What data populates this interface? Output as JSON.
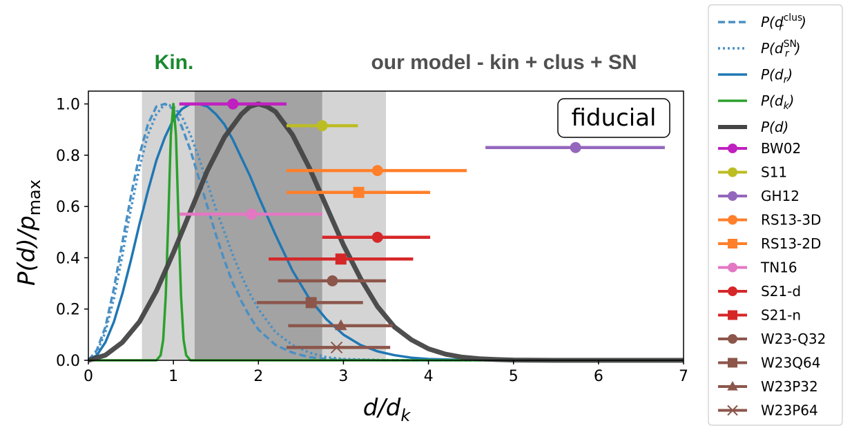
{
  "chart_data": {
    "type": "line",
    "xlabel": "d/d_k",
    "ylabel": "P(d)/p_max",
    "xlim": [
      0,
      7
    ],
    "ylim": [
      0,
      1.05
    ],
    "xticks": [
      0,
      1,
      2,
      3,
      4,
      5,
      6,
      7
    ],
    "yticks": [
      0.0,
      0.2,
      0.4,
      0.6,
      0.8,
      1.0
    ],
    "grid": false,
    "legend_placement": "outside-right",
    "header_labels": [
      {
        "text": "Kin.",
        "color": "#1a8a2e"
      },
      {
        "text": "our model - kin + clus + SN",
        "color": "#505050"
      }
    ],
    "annotation": "fiducial",
    "shaded_bands": [
      {
        "x": [
          0.63,
          3.5
        ],
        "color": "#d4d4d4"
      },
      {
        "x": [
          1.25,
          2.75
        ],
        "color": "#a3a3a3"
      }
    ],
    "curves": [
      {
        "name": "P(d_r^clus)",
        "color": "#4a90c4",
        "style": "dashed",
        "x": [
          0,
          0.1,
          0.2,
          0.3,
          0.4,
          0.5,
          0.6,
          0.7,
          0.8,
          0.9,
          1.0,
          1.1,
          1.2,
          1.3,
          1.4,
          1.5,
          1.6,
          1.7,
          1.8,
          1.9,
          2.0,
          2.2,
          2.4,
          2.6,
          2.8,
          3.0,
          3.5,
          4.0,
          7.0
        ],
        "y": [
          0,
          0.04,
          0.13,
          0.28,
          0.46,
          0.64,
          0.8,
          0.92,
          0.99,
          1.0,
          0.98,
          0.91,
          0.82,
          0.71,
          0.6,
          0.49,
          0.39,
          0.3,
          0.23,
          0.17,
          0.12,
          0.06,
          0.03,
          0.012,
          0.005,
          0.002,
          0,
          0,
          0
        ]
      },
      {
        "name": "P(d_r^SN)",
        "color": "#4a90c4",
        "style": "dotted",
        "x": [
          0,
          0.1,
          0.2,
          0.3,
          0.4,
          0.5,
          0.6,
          0.7,
          0.8,
          0.9,
          1.0,
          1.1,
          1.2,
          1.3,
          1.4,
          1.5,
          1.6,
          1.7,
          1.8,
          1.9,
          2.0,
          2.2,
          2.4,
          2.6,
          2.8,
          3.0,
          3.5,
          4.0,
          7.0
        ],
        "y": [
          0,
          0.03,
          0.11,
          0.24,
          0.41,
          0.59,
          0.75,
          0.88,
          0.96,
          1.0,
          0.99,
          0.95,
          0.88,
          0.79,
          0.69,
          0.59,
          0.5,
          0.41,
          0.33,
          0.26,
          0.2,
          0.11,
          0.06,
          0.03,
          0.012,
          0.005,
          0.001,
          0,
          0
        ]
      },
      {
        "name": "P(d_r)",
        "color": "#1f77b4",
        "style": "solid",
        "x": [
          0,
          0.1,
          0.2,
          0.3,
          0.4,
          0.5,
          0.6,
          0.7,
          0.8,
          0.9,
          1.0,
          1.1,
          1.2,
          1.3,
          1.4,
          1.5,
          1.6,
          1.7,
          1.8,
          1.9,
          2.0,
          2.2,
          2.4,
          2.6,
          2.8,
          3.0,
          3.2,
          3.4,
          3.6,
          3.8,
          4.0,
          4.5,
          5.0,
          7.0
        ],
        "y": [
          0,
          0.02,
          0.07,
          0.15,
          0.26,
          0.39,
          0.53,
          0.66,
          0.78,
          0.87,
          0.94,
          0.98,
          1.0,
          1.0,
          0.99,
          0.96,
          0.92,
          0.86,
          0.79,
          0.72,
          0.64,
          0.49,
          0.35,
          0.24,
          0.16,
          0.1,
          0.06,
          0.035,
          0.02,
          0.01,
          0.005,
          0.001,
          0,
          0
        ]
      },
      {
        "name": "P(d_k)",
        "color": "#2ca02c",
        "style": "solid",
        "x": [
          0,
          0.8,
          0.85,
          0.88,
          0.91,
          0.94,
          0.97,
          1.0,
          1.03,
          1.06,
          1.09,
          1.12,
          1.15,
          1.2,
          7.0
        ],
        "y": [
          0,
          0,
          0.02,
          0.08,
          0.25,
          0.55,
          0.88,
          1.0,
          0.88,
          0.55,
          0.25,
          0.08,
          0.02,
          0,
          0
        ]
      },
      {
        "name": "P(d)",
        "color": "#444444",
        "style": "solid",
        "x": [
          0,
          0.1,
          0.2,
          0.4,
          0.6,
          0.8,
          1.0,
          1.2,
          1.4,
          1.6,
          1.8,
          1.9,
          2.0,
          2.1,
          2.2,
          2.4,
          2.6,
          2.8,
          3.0,
          3.2,
          3.4,
          3.6,
          3.8,
          4.0,
          4.2,
          4.4,
          4.6,
          4.8,
          5.0,
          5.5,
          6.0,
          7.0
        ],
        "y": [
          0,
          0.01,
          0.02,
          0.07,
          0.15,
          0.27,
          0.42,
          0.58,
          0.74,
          0.87,
          0.96,
          0.99,
          1.0,
          0.99,
          0.97,
          0.88,
          0.75,
          0.6,
          0.45,
          0.32,
          0.21,
          0.13,
          0.08,
          0.045,
          0.024,
          0.012,
          0.006,
          0.003,
          0.001,
          0,
          0,
          0
        ]
      }
    ],
    "series": [
      {
        "name": "BW02",
        "color": "#c020c0",
        "marker": "circle",
        "x": 1.7,
        "y": 1.0,
        "xerr": [
          1.07,
          2.33
        ]
      },
      {
        "name": "S11",
        "color": "#bcbd22",
        "marker": "circle",
        "x": 2.75,
        "y": 0.915,
        "xerr": [
          2.33,
          3.17
        ]
      },
      {
        "name": "GH12",
        "color": "#9467bd",
        "marker": "circle",
        "x": 5.73,
        "y": 0.83,
        "xerr": [
          4.67,
          6.78
        ]
      },
      {
        "name": "RS13-3D",
        "color": "#ff7f2a",
        "marker": "circle",
        "x": 3.4,
        "y": 0.74,
        "xerr": [
          2.33,
          4.45
        ]
      },
      {
        "name": "RS13-2D",
        "color": "#ff7f2a",
        "marker": "square",
        "x": 3.18,
        "y": 0.655,
        "xerr": [
          2.33,
          4.02
        ]
      },
      {
        "name": "TN16",
        "color": "#e377c2",
        "marker": "circle",
        "x": 1.92,
        "y": 0.57,
        "xerr": [
          1.07,
          2.75
        ]
      },
      {
        "name": "S21-d",
        "color": "#d62728",
        "marker": "circle",
        "x": 3.4,
        "y": 0.48,
        "xerr": [
          2.75,
          4.02
        ]
      },
      {
        "name": "S21-n",
        "color": "#d62728",
        "marker": "square",
        "x": 2.97,
        "y": 0.395,
        "xerr": [
          2.12,
          3.82
        ]
      },
      {
        "name": "W23-Q32",
        "color": "#8c564b",
        "marker": "circle",
        "x": 2.87,
        "y": 0.31,
        "xerr": [
          2.23,
          3.5
        ]
      },
      {
        "name": "W23Q64",
        "color": "#8c564b",
        "marker": "square",
        "x": 2.62,
        "y": 0.225,
        "xerr": [
          1.98,
          3.23
        ]
      },
      {
        "name": "W23P32",
        "color": "#8c564b",
        "marker": "triangle",
        "x": 2.97,
        "y": 0.135,
        "xerr": [
          2.35,
          3.58
        ]
      },
      {
        "name": "W23P64",
        "color": "#8c564b",
        "marker": "x",
        "x": 2.92,
        "y": 0.05,
        "xerr": [
          2.33,
          3.55
        ]
      }
    ]
  }
}
